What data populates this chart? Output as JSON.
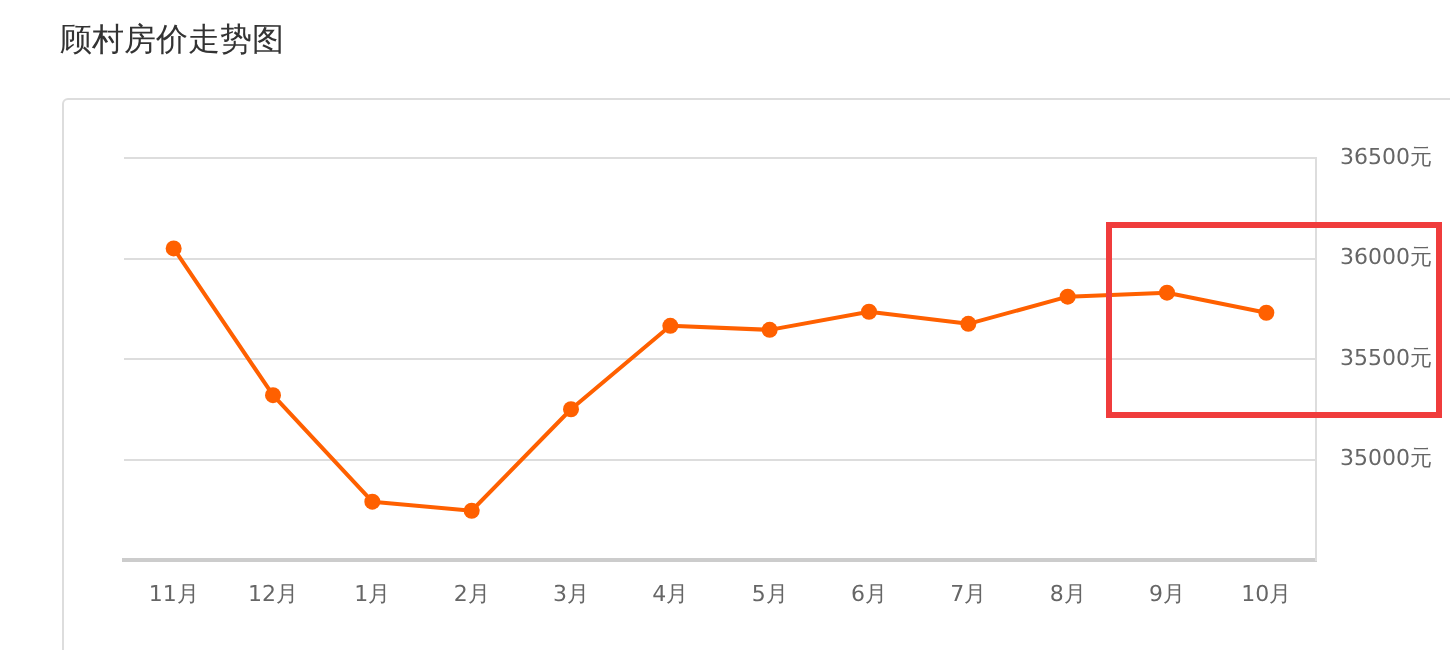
{
  "chart_data": {
    "type": "line",
    "title": "顾村房价走势图",
    "categories": [
      "11月",
      "12月",
      "1月",
      "2月",
      "3月",
      "4月",
      "5月",
      "6月",
      "7月",
      "8月",
      "9月",
      "10月"
    ],
    "series": [
      {
        "color": "#ff6000",
        "values": [
          36050,
          35320,
          34790,
          34745,
          35250,
          35665,
          35645,
          35735,
          35675,
          35810,
          35830,
          35730
        ]
      }
    ],
    "ylim": [
      34500,
      36500
    ],
    "yticks": [
      {
        "value": 35000,
        "label": "35000元"
      },
      {
        "value": 35500,
        "label": "35500元"
      },
      {
        "value": 36000,
        "label": "36000元"
      },
      {
        "value": 36500,
        "label": "36500元"
      }
    ],
    "grid": "y",
    "legend": false,
    "marker": "circle",
    "line_style": "solid"
  }
}
